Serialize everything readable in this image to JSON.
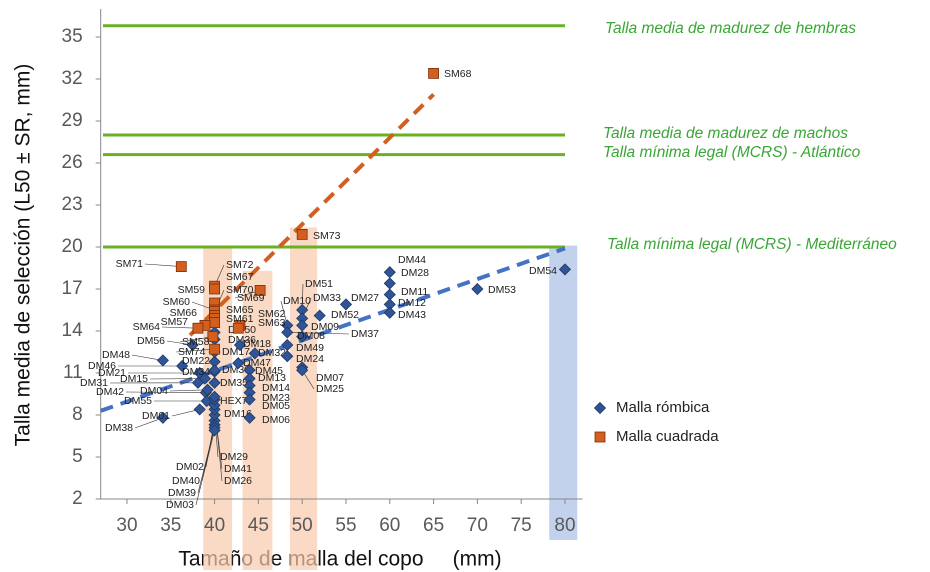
{
  "chart_data": {
    "type": "scatter",
    "x_label": "Tamaño de malla del copo     (mm)",
    "y_label": "Talla media de selección (L50 ± SR, mm)",
    "xlim": [
      27,
      82
    ],
    "ylim": [
      2,
      37
    ],
    "xticks": [
      30,
      35,
      40,
      45,
      50,
      55,
      60,
      65,
      70,
      75,
      80
    ],
    "yticks": [
      2,
      5,
      8,
      11,
      14,
      17,
      20,
      23,
      26,
      29,
      32,
      35
    ],
    "legend": "right",
    "series": [
      {
        "name": "Malla rómbica",
        "marker": "diamond",
        "color": "#2f5597",
        "labels": [
          "DM48",
          "DM46",
          "DM21",
          "DM31",
          "DM15",
          "DM42",
          "DM04",
          "DM55",
          "DM34",
          "DM22",
          "DM38",
          "DM01",
          "DM02",
          "DM40",
          "DM39",
          "DM03",
          "DM29",
          "DM41",
          "DM26",
          "DM16",
          "HEX77",
          "DM35",
          "DM30",
          "DM17",
          "DM36",
          "DM50",
          "DM18",
          "DM47",
          "DM32",
          "DM45",
          "DM13",
          "DM14",
          "DM23",
          "DM05",
          "DM06",
          "DM51",
          "DM10",
          "DM33",
          "DM52",
          "DM09",
          "DM08",
          "DM37",
          "DM49",
          "DM24",
          "DM07",
          "DM25",
          "DM27",
          "DM44",
          "DM28",
          "DM11",
          "DM12",
          "DM43",
          "DM53",
          "DM54",
          "DM56"
        ],
        "x": [
          34.1,
          36.3,
          38.3,
          38.1,
          38.9,
          39.0,
          39.2,
          39.1,
          40,
          40,
          34.1,
          38.3,
          40,
          40,
          40,
          40,
          40,
          40,
          40,
          40,
          40,
          40,
          40,
          40,
          40,
          40,
          42.9,
          42.7,
          44.6,
          44.0,
          44.0,
          44.0,
          44.0,
          44.0,
          44.0,
          50,
          48.3,
          50,
          52,
          50,
          50,
          48.3,
          48.3,
          48.3,
          50,
          50,
          55,
          60,
          60,
          60,
          60,
          60,
          70,
          80,
          37.5
        ],
        "values": [
          11.9,
          11.5,
          11.0,
          10.3,
          10.6,
          9.6,
          9.8,
          9.0,
          11.1,
          11.8,
          7.8,
          8.4,
          7.6,
          7.3,
          7.1,
          6.9,
          8.0,
          8.4,
          8.7,
          9.1,
          9.3,
          10.3,
          11.2,
          12.5,
          13.4,
          13.9,
          13.0,
          11.7,
          12.4,
          11.2,
          10.6,
          10.1,
          9.6,
          9.1,
          7.8,
          15.5,
          14.4,
          14.9,
          15.1,
          14.4,
          13.6,
          13.9,
          13.0,
          12.2,
          11.4,
          11.2,
          15.9,
          18.2,
          17.4,
          16.6,
          15.9,
          15.3,
          17.0,
          18.4,
          13.0
        ]
      },
      {
        "name": "Malla cuadrada",
        "marker": "square",
        "color": "#d35f1f",
        "labels": [
          "SM68",
          "SM73",
          "SM71",
          "SM72",
          "SM67",
          "SM69",
          "SM59",
          "SM60",
          "SM70",
          "SM65",
          "SM66",
          "SM62",
          "SM61",
          "SM57",
          "SM63",
          "SM64",
          "SM58",
          "SM74"
        ],
        "x": [
          65,
          50,
          36.2,
          40,
          40,
          45.2,
          40,
          40,
          40,
          40,
          40,
          42.9,
          40,
          38.9,
          42.7,
          38.1,
          39.8,
          40
        ],
        "values": [
          32.4,
          20.9,
          18.6,
          17.2,
          17.0,
          16.9,
          16.0,
          15.5,
          15.4,
          15.1,
          14.9,
          14.4,
          14.6,
          14.4,
          14.2,
          14.2,
          13.6,
          12.7
        ]
      }
    ],
    "trend_lines": [
      {
        "color": "#d35f1f",
        "x": [
          37.2,
          65
        ],
        "y": [
          13.7,
          30.9
        ]
      },
      {
        "color": "#4472c4",
        "x": [
          27,
          80
        ],
        "y": [
          8.3,
          19.9
        ]
      }
    ],
    "reference_lines": [
      {
        "y": 35.8,
        "label": "Talla media de madurez de hembras"
      },
      {
        "y": 28,
        "label": "Talla media de madurez de machos"
      },
      {
        "y": 26.6,
        "label": "Talla mínima legal (MCRS) - Atlántico"
      },
      {
        "y": 20,
        "label": "Talla mínima legal (MCRS) - Mediterráneo"
      }
    ],
    "reference_color": "#6ab023",
    "bands": [
      {
        "x": [
          38.7,
          42.0
        ],
        "top": 20,
        "color": "#f8cbad"
      },
      {
        "x": [
          43.2,
          46.6
        ],
        "top": 18.3,
        "color": "#f8cbad"
      },
      {
        "x": [
          48.6,
          51.7
        ],
        "top": 21.4,
        "color": "#f8cbad"
      },
      {
        "x": [
          78.2,
          81.4
        ],
        "top": 20.1,
        "color": "#b4c7e7"
      }
    ]
  }
}
